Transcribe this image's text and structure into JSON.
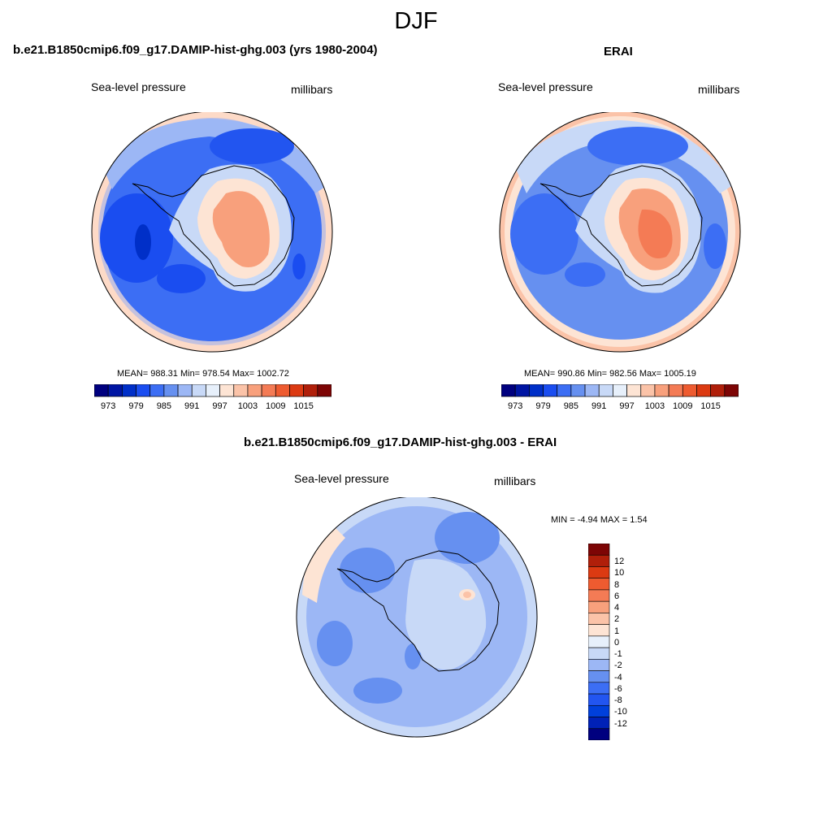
{
  "figure_title": "DJF",
  "colors": {
    "scale": [
      "#00007f",
      "#0015a3",
      "#002fc8",
      "#1a4df0",
      "#3c6ef4",
      "#6690f0",
      "#9cb7f5",
      "#c8d9f7",
      "#e7f0fb",
      "#fde4d4",
      "#fbc3a8",
      "#f8a07c",
      "#f47b55",
      "#ee5b30",
      "#dc3a12",
      "#b01f0a",
      "#7d0505"
    ],
    "diff_scale": [
      "#00007f",
      "#0021b7",
      "#0040db",
      "#2255f0",
      "#3c6ef4",
      "#6690f0",
      "#9cb7f5",
      "#c8d9f7",
      "#e7f0fb",
      "#fde4d4",
      "#fbc3a8",
      "#f8a07c",
      "#f47b55",
      "#ee5b30",
      "#dc3a12",
      "#b01f0a",
      "#7d0505"
    ],
    "land_outline": "#000000"
  },
  "panels": [
    {
      "title": "b.e21.B1850cmip6.f09_g17.DAMIP-hist-ghg.003 (yrs 1980-2004)",
      "left_label": "Sea-level pressure",
      "right_label": "millibars",
      "stats": "MEAN= 988.31  Min= 978.54  Max= 1002.72",
      "colorbar_ticks": [
        "973",
        "979",
        "985",
        "991",
        "997",
        "1003",
        "1009",
        "1015"
      ]
    },
    {
      "title": "ERAI",
      "left_label": "Sea-level pressure",
      "right_label": "millibars",
      "stats": "MEAN= 990.86  Min= 982.56  Max= 1005.19",
      "colorbar_ticks": [
        "973",
        "979",
        "985",
        "991",
        "997",
        "1003",
        "1009",
        "1015"
      ]
    },
    {
      "title": "b.e21.B1850cmip6.f09_g17.DAMIP-hist-ghg.003 - ERAI",
      "left_label": "Sea-level pressure",
      "right_label": "millibars",
      "stats": "MIN =  -4.94 MAX =   1.54",
      "colorbar_ticks": [
        "12",
        "10",
        "8",
        "6",
        "4",
        "2",
        "1",
        "0",
        "-1",
        "-2",
        "-4",
        "-6",
        "-8",
        "-10",
        "-12"
      ]
    }
  ],
  "chart_data": [
    {
      "type": "heatmap",
      "projection": "south-polar-stereographic",
      "title": "b.e21.B1850cmip6.f09_g17.DAMIP-hist-ghg.003 (yrs 1980-2004)",
      "variable": "Sea-level pressure",
      "units": "millibars",
      "mean": 988.31,
      "min": 978.54,
      "max": 1002.72,
      "contour_levels": [
        970,
        973,
        976,
        979,
        982,
        985,
        988,
        991,
        994,
        997,
        1000,
        1003,
        1006,
        1009,
        1012,
        1015
      ],
      "colorbar_labels": [
        973,
        979,
        985,
        991,
        997,
        1003,
        1009,
        1015
      ]
    },
    {
      "type": "heatmap",
      "projection": "south-polar-stereographic",
      "title": "ERAI",
      "variable": "Sea-level pressure",
      "units": "millibars",
      "mean": 990.86,
      "min": 982.56,
      "max": 1005.19,
      "contour_levels": [
        970,
        973,
        976,
        979,
        982,
        985,
        988,
        991,
        994,
        997,
        1000,
        1003,
        1006,
        1009,
        1012,
        1015
      ],
      "colorbar_labels": [
        973,
        979,
        985,
        991,
        997,
        1003,
        1009,
        1015
      ]
    },
    {
      "type": "heatmap",
      "projection": "south-polar-stereographic",
      "title": "b.e21.B1850cmip6.f09_g17.DAMIP-hist-ghg.003 - ERAI",
      "variable": "Sea-level pressure",
      "units": "millibars",
      "min": -4.94,
      "max": 1.54,
      "contour_levels": [
        -12,
        -10,
        -8,
        -6,
        -4,
        -2,
        -1,
        0,
        1,
        2,
        4,
        6,
        8,
        10,
        12
      ],
      "colorbar_labels": [
        12,
        10,
        8,
        6,
        4,
        2,
        1,
        0,
        -1,
        -2,
        -4,
        -6,
        -8,
        -10,
        -12
      ]
    }
  ]
}
